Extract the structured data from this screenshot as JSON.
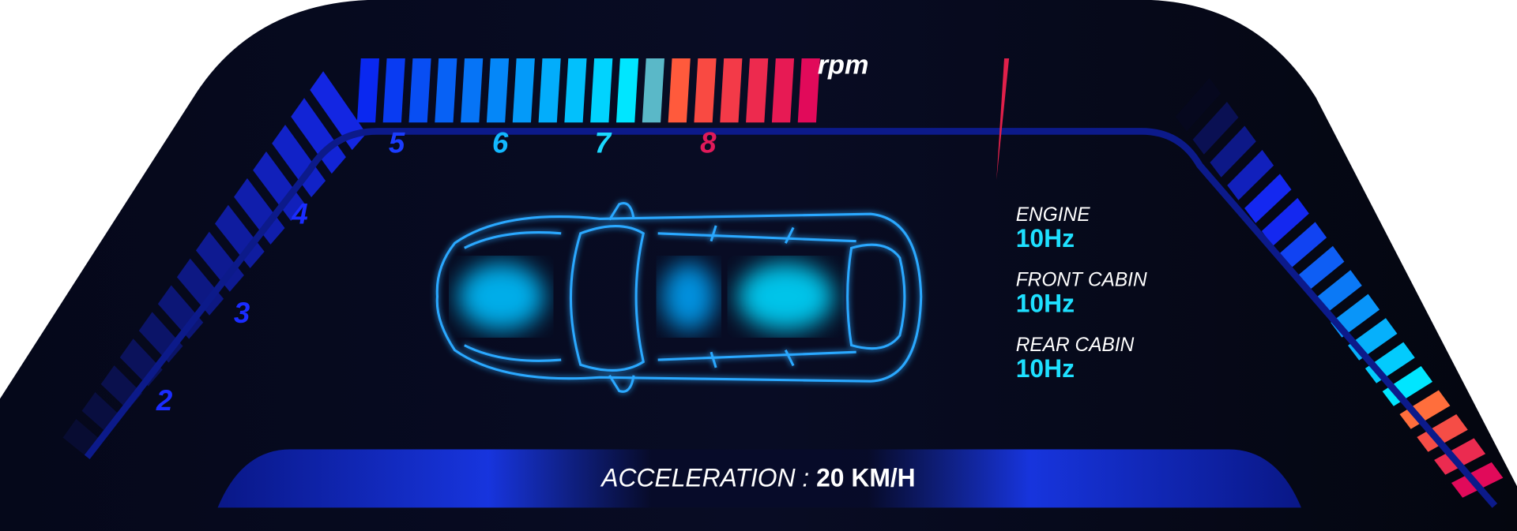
{
  "rpm_label": "rpm",
  "gauge_numbers": [
    "2",
    "3",
    "4",
    "5",
    "6",
    "7",
    "8"
  ],
  "readings": [
    {
      "label": "ENGINE",
      "value": "10Hz"
    },
    {
      "label": "FRONT CABIN",
      "value": "10Hz"
    },
    {
      "label": "REAR CABIN",
      "value": "10Hz"
    }
  ],
  "acceleration": {
    "label": "ACCELERATION :",
    "value": "20 KM/H"
  }
}
